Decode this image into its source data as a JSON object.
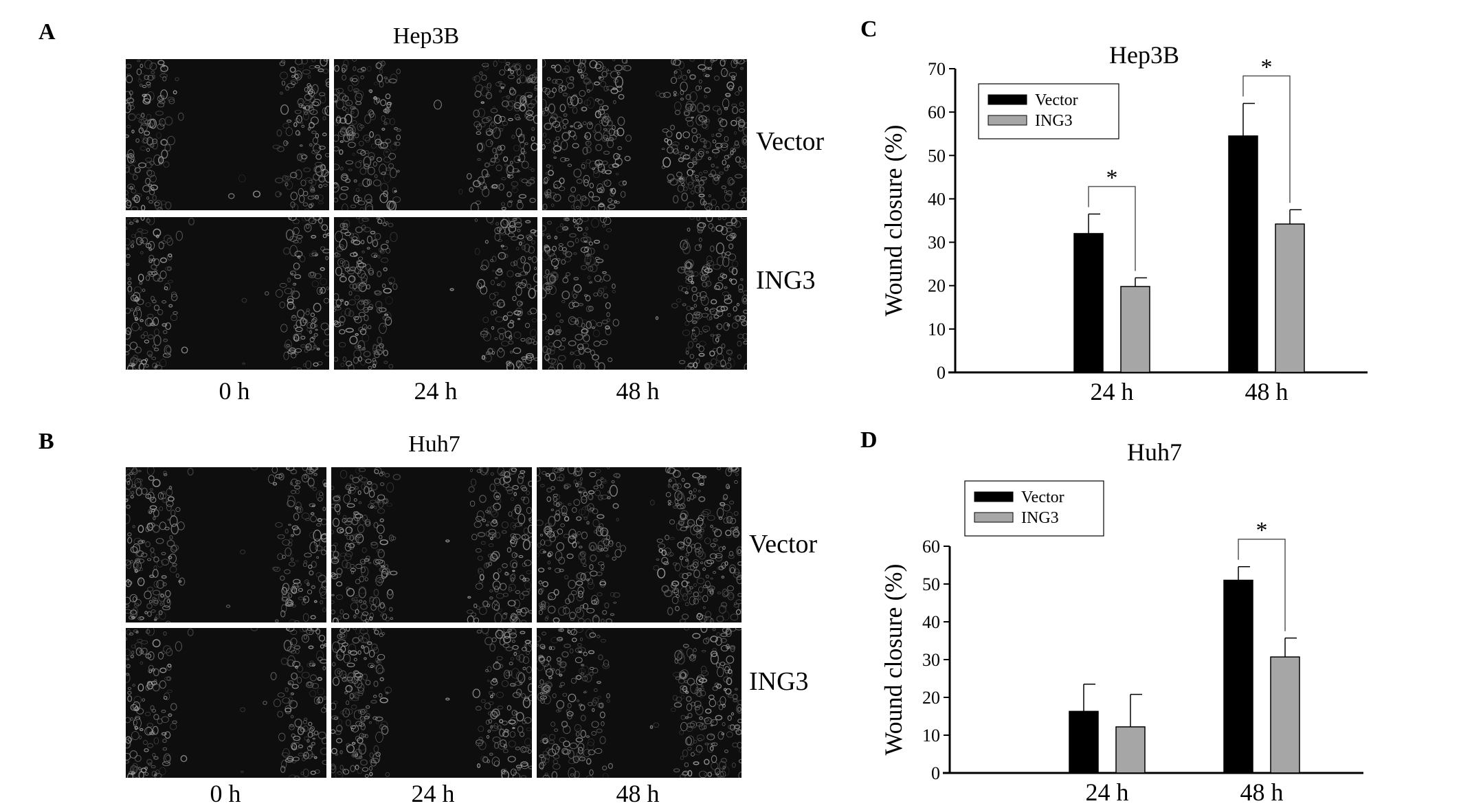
{
  "figure": {
    "panel_a": {
      "letter": "A",
      "title": "Hep3B",
      "rows": [
        "Vector",
        "ING3"
      ],
      "times": [
        "0 h",
        "24 h",
        "48 h"
      ],
      "gap_fraction": [
        [
          0.55,
          0.4,
          0.22
        ],
        [
          0.55,
          0.45,
          0.35
        ]
      ]
    },
    "panel_b": {
      "letter": "B",
      "title": "Huh7",
      "rows": [
        "Vector",
        "ING3"
      ],
      "times": [
        "0 h",
        "24 h",
        "48 h"
      ],
      "gap_fraction": [
        [
          0.52,
          0.42,
          0.24
        ],
        [
          0.55,
          0.5,
          0.36
        ]
      ]
    },
    "panel_c": {
      "letter": "C"
    },
    "panel_d": {
      "letter": "D"
    }
  },
  "chart_data": [
    {
      "type": "bar",
      "title": "Hep3B",
      "ylabel": "Wound closure  (%)",
      "categories": [
        "24 h",
        "48 h"
      ],
      "ylim": [
        0,
        70
      ],
      "yticks": [
        0,
        10,
        20,
        30,
        40,
        50,
        60,
        70
      ],
      "series": [
        {
          "name": "Vector",
          "values": [
            32,
            54.5
          ],
          "errors": [
            4.5,
            7.5
          ],
          "color": "#000000"
        },
        {
          "name": "ING3",
          "values": [
            19.8,
            34.2
          ],
          "errors": [
            2,
            3.3
          ],
          "color": "#a6a6a6"
        }
      ],
      "significance": [
        {
          "category": "24 h",
          "label": "*"
        },
        {
          "category": "48 h",
          "label": "*"
        }
      ],
      "legend": "top-left"
    },
    {
      "type": "bar",
      "title": "Huh7",
      "ylabel": "Wound closure  (%)",
      "categories": [
        "24 h",
        "48 h"
      ],
      "ylim": [
        0,
        60
      ],
      "yticks": [
        0,
        10,
        20,
        30,
        40,
        50,
        60
      ],
      "series": [
        {
          "name": "Vector",
          "values": [
            16.3,
            51
          ],
          "errors": [
            7.2,
            3.6
          ],
          "color": "#000000"
        },
        {
          "name": "ING3",
          "values": [
            12.2,
            30.7
          ],
          "errors": [
            8.6,
            5
          ],
          "color": "#a6a6a6"
        }
      ],
      "significance": [
        {
          "category": "48 h",
          "label": "*"
        }
      ],
      "legend": "top-left"
    }
  ]
}
